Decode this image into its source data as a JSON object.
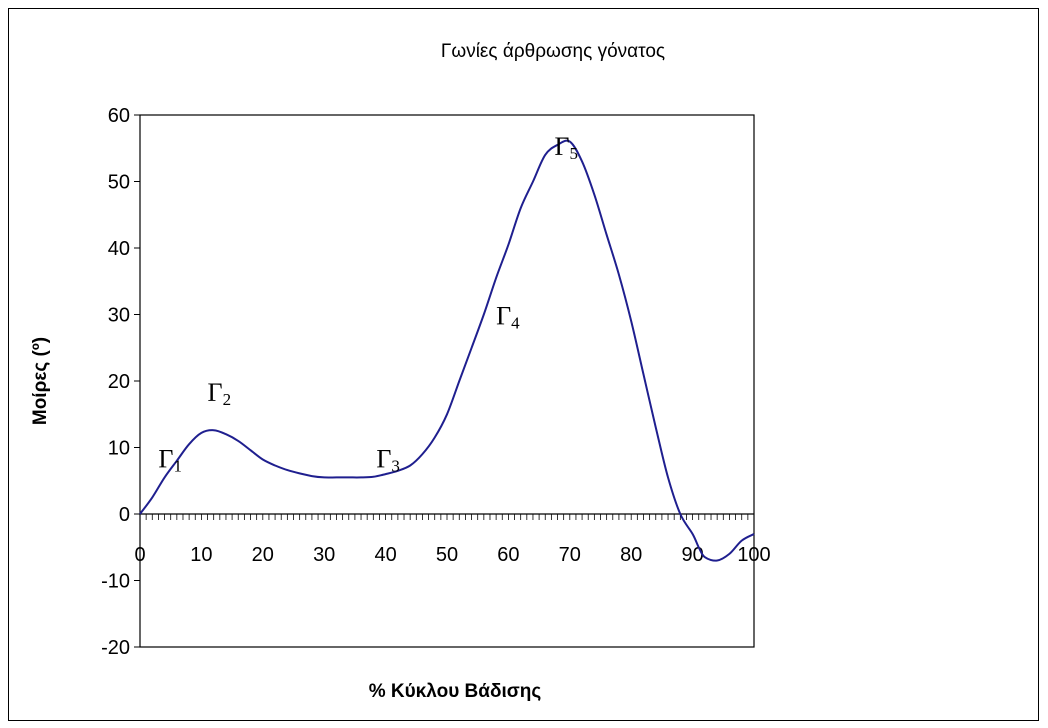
{
  "chart_data": {
    "type": "line",
    "title": "Γωνίες άρθρωσης γόνατος",
    "xlabel": "% Κύκλου Βάδισης",
    "ylabel": "Μοίρες (º)",
    "xlim": [
      0,
      100
    ],
    "ylim": [
      -20,
      60
    ],
    "x_ticks": [
      0,
      10,
      20,
      30,
      40,
      50,
      60,
      70,
      80,
      90,
      100
    ],
    "y_ticks": [
      60,
      50,
      40,
      30,
      20,
      10,
      0,
      -10,
      -20
    ],
    "grid": false,
    "legend": "none",
    "line_color": "#1f1f8f",
    "series": [
      {
        "x": [
          0,
          2,
          4,
          6,
          8,
          10,
          12,
          14,
          16,
          18,
          20,
          22,
          24,
          26,
          28,
          30,
          32,
          34,
          36,
          38,
          40,
          42,
          44,
          46,
          48,
          50,
          52,
          54,
          56,
          58,
          60,
          62,
          64,
          66,
          68,
          70,
          72,
          74,
          76,
          78,
          80,
          82,
          84,
          86,
          88,
          90,
          91,
          92,
          94,
          96,
          98,
          100
        ],
        "values": [
          0,
          2.5,
          5.5,
          8,
          10.5,
          12.2,
          12.6,
          12,
          11,
          9.6,
          8.2,
          7.3,
          6.6,
          6.1,
          5.7,
          5.5,
          5.5,
          5.5,
          5.5,
          5.6,
          6,
          6.5,
          7.3,
          9,
          11.5,
          15,
          20,
          25,
          30,
          35.5,
          40.5,
          46,
          50,
          54,
          55.5,
          56,
          53,
          48,
          42,
          36,
          29,
          21,
          13,
          5.5,
          0,
          -3,
          -5,
          -6.5,
          -7,
          -6,
          -4,
          -3
        ]
      }
    ],
    "annotations": [
      {
        "main": "Γ",
        "sub": "1",
        "x": 3,
        "y": 7
      },
      {
        "main": "Γ",
        "sub": "2",
        "x": 11,
        "y": 17
      },
      {
        "main": "Γ",
        "sub": "3",
        "x": 38.5,
        "y": 7
      },
      {
        "main": "Γ",
        "sub": "4",
        "x": 58,
        "y": 28.5
      },
      {
        "main": "Γ",
        "sub": "5",
        "x": 67.5,
        "y": 54
      }
    ]
  }
}
